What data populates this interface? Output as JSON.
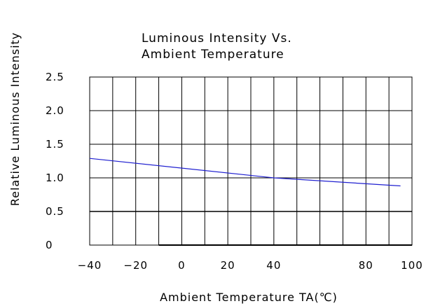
{
  "chart_data": {
    "type": "line",
    "title": [
      "Luminous Intensity Vs.",
      "Ambient Temperature"
    ],
    "xlabel": "Ambient Temperature TA(℃)",
    "ylabel": "Relative Luminous Intensity",
    "xlim": [
      -40,
      100
    ],
    "ylim": [
      0,
      2.5
    ],
    "x_ticks": [
      -40,
      -20,
      0,
      20,
      40,
      80,
      100
    ],
    "x_tick_labels": [
      "−40",
      "−20",
      "0",
      "20",
      "40",
      "80",
      "100"
    ],
    "y_ticks": [
      0,
      0.5,
      1.0,
      1.5,
      2.0,
      2.5
    ],
    "y_tick_labels": [
      "0",
      "0.5",
      "1.0",
      "1.5",
      "2.0",
      "2.5"
    ],
    "grid": true,
    "series": [
      {
        "color": "#1f1fd0",
        "x": [
          -40,
          40,
          95
        ],
        "y": [
          1.29,
          1.0,
          0.88
        ]
      }
    ]
  }
}
